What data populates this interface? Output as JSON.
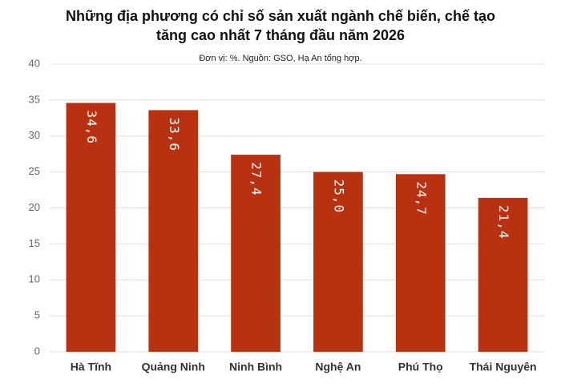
{
  "chart_data": {
    "type": "bar",
    "title": [
      "Những địa phương có chỉ số sản xuất ngành chế biến, chế tạo",
      "tăng cao nhất 7 tháng đầu năm 2026"
    ],
    "subtitle": "Đơn vị: %. Nguồn: GSO, Hạ An tổng hợp.",
    "categories": [
      "Hà Tĩnh",
      "Quảng Ninh",
      "Ninh Bình",
      "Nghệ An",
      "Phú Thọ",
      "Thái Nguyên"
    ],
    "values": [
      34.6,
      33.6,
      27.4,
      25.0,
      24.7,
      21.4
    ],
    "value_labels": [
      "34,6",
      "33,6",
      "27,4",
      "25,0",
      "24,7",
      "21,4"
    ],
    "color": "#b83110",
    "ylim": [
      0,
      40
    ],
    "yticks": [
      0,
      5,
      10,
      15,
      20,
      25,
      30,
      35,
      40
    ],
    "grid": true
  }
}
